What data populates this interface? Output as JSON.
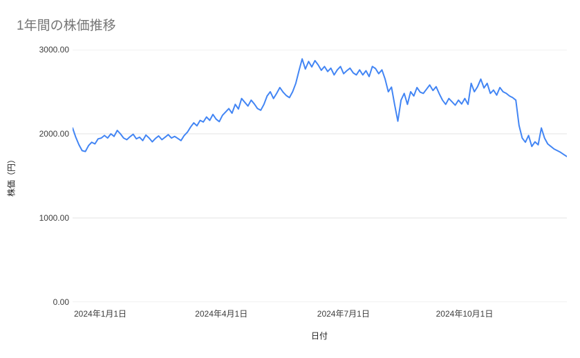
{
  "chart_data": {
    "type": "line",
    "title": "1年間の株価推移",
    "xlabel": "日付",
    "ylabel": "株価（円）",
    "ylim": [
      0,
      3000
    ],
    "grid_on": true,
    "grid_color": "#e3e3e3",
    "legend_position": "none",
    "colors": {
      "line": "#4285f4",
      "title": "#757575",
      "tick_label": "#3c3c3c"
    },
    "y_ticks": [
      {
        "value": 3000,
        "label": "3000.00"
      },
      {
        "value": 2000,
        "label": "2000.00"
      },
      {
        "value": 1000,
        "label": "1000.00"
      },
      {
        "value": 0,
        "label": "0.00"
      }
    ],
    "x_ticks": [
      {
        "pos": 0.056,
        "label": "2024年1月1日"
      },
      {
        "pos": 0.301,
        "label": "2024年4月1日"
      },
      {
        "pos": 0.548,
        "label": "2024年7月1日"
      },
      {
        "pos": 0.793,
        "label": "2024年10月1日"
      }
    ],
    "series": [
      {
        "name": "株価",
        "color": "#4285f4",
        "values": [
          2070,
          1960,
          1870,
          1800,
          1790,
          1860,
          1900,
          1880,
          1940,
          1950,
          1980,
          1950,
          2000,
          1970,
          2040,
          2000,
          1950,
          1930,
          1965,
          1995,
          1940,
          1960,
          1920,
          1985,
          1950,
          1905,
          1945,
          1975,
          1930,
          1960,
          1990,
          1950,
          1970,
          1945,
          1920,
          1980,
          2020,
          2080,
          2130,
          2095,
          2160,
          2140,
          2200,
          2160,
          2230,
          2175,
          2145,
          2220,
          2260,
          2300,
          2245,
          2350,
          2295,
          2420,
          2375,
          2330,
          2400,
          2355,
          2300,
          2280,
          2350,
          2450,
          2500,
          2420,
          2480,
          2550,
          2495,
          2455,
          2430,
          2500,
          2600,
          2750,
          2890,
          2770,
          2860,
          2795,
          2870,
          2820,
          2755,
          2800,
          2740,
          2780,
          2700,
          2760,
          2800,
          2715,
          2750,
          2780,
          2725,
          2700,
          2760,
          2700,
          2750,
          2680,
          2800,
          2775,
          2715,
          2760,
          2650,
          2500,
          2555,
          2345,
          2150,
          2400,
          2480,
          2350,
          2500,
          2450,
          2550,
          2495,
          2480,
          2530,
          2580,
          2515,
          2560,
          2475,
          2400,
          2350,
          2420,
          2380,
          2340,
          2400,
          2355,
          2420,
          2350,
          2600,
          2500,
          2560,
          2650,
          2545,
          2600,
          2480,
          2520,
          2460,
          2550,
          2500,
          2480,
          2450,
          2430,
          2400,
          2100,
          1950,
          1900,
          1980,
          1850,
          1905,
          1870,
          2070,
          1950,
          1880,
          1850,
          1820,
          1800,
          1780,
          1755,
          1730
        ]
      }
    ]
  }
}
